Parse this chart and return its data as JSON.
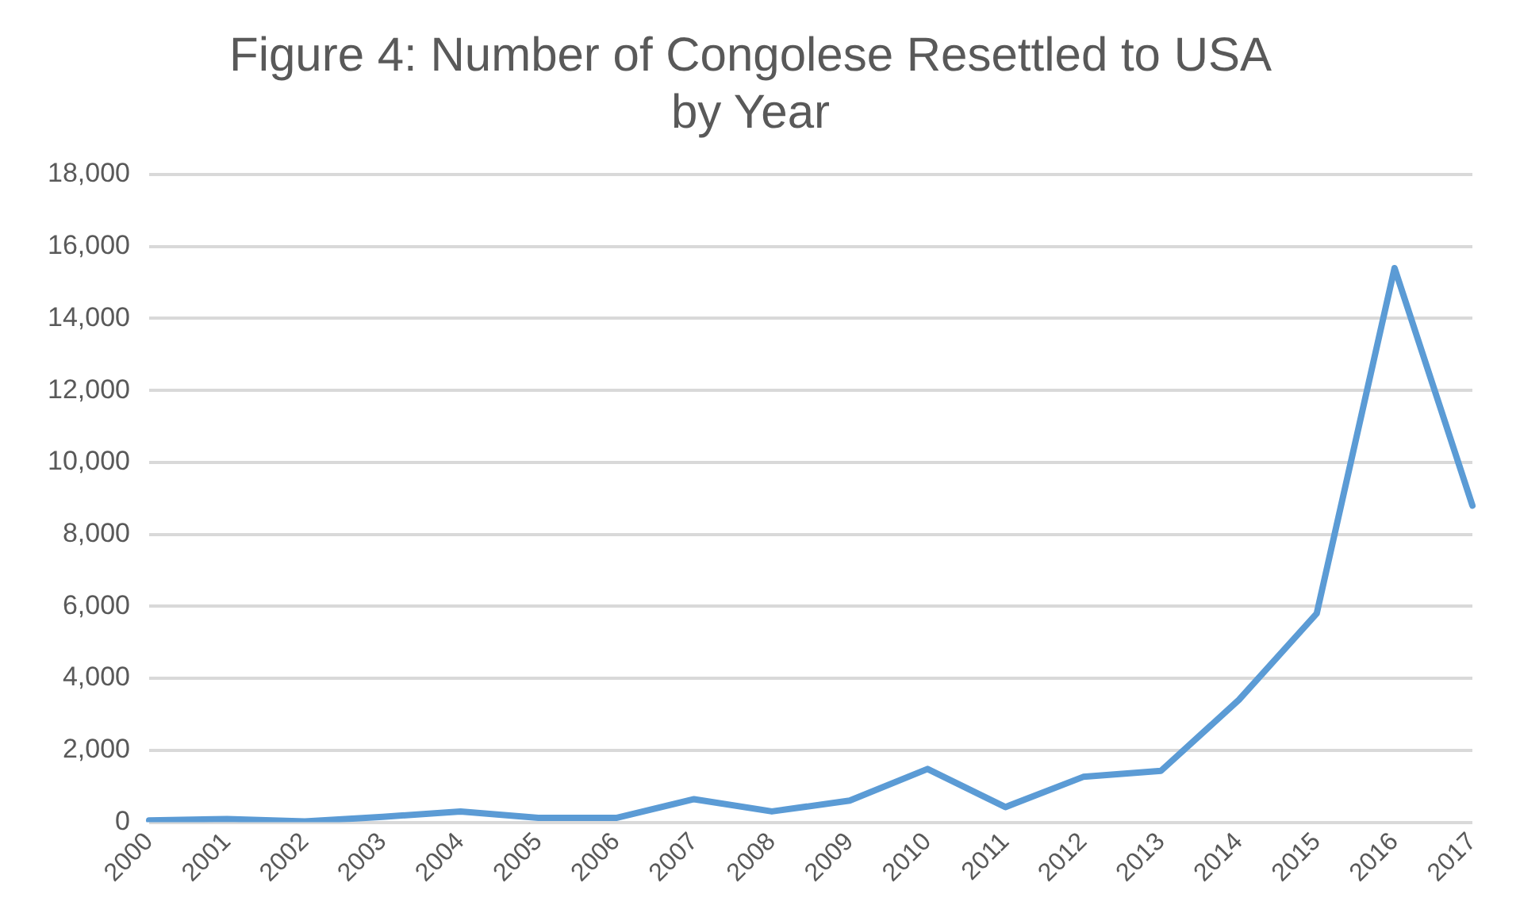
{
  "chart_data": {
    "type": "line",
    "title": [
      "Figure 4: Number of Congolese Resettled to USA",
      "by Year"
    ],
    "categories": [
      "2000",
      "2001",
      "2002",
      "2003",
      "2004",
      "2005",
      "2006",
      "2007",
      "2008",
      "2009",
      "2010",
      "2011",
      "2012",
      "2013",
      "2014",
      "2015",
      "2016",
      "2017"
    ],
    "series": [
      {
        "color": "#5b9bd5",
        "values": [
          50,
          90,
          20,
          150,
          300,
          120,
          120,
          640,
          300,
          600,
          1480,
          420,
          1260,
          1430,
          3400,
          5800,
          15400,
          8800
        ]
      }
    ],
    "ylim": [
      0,
      18000
    ],
    "yticks": [
      {
        "value": 0,
        "label": "0"
      },
      {
        "value": 2000,
        "label": "2,000"
      },
      {
        "value": 4000,
        "label": "4,000"
      },
      {
        "value": 6000,
        "label": "6,000"
      },
      {
        "value": 8000,
        "label": "8,000"
      },
      {
        "value": 10000,
        "label": "10,000"
      },
      {
        "value": 12000,
        "label": "12,000"
      },
      {
        "value": 14000,
        "label": "14,000"
      },
      {
        "value": 16000,
        "label": "16,000"
      },
      {
        "value": 18000,
        "label": "18,000"
      }
    ],
    "grid": "y",
    "legend": false,
    "marker": "none",
    "line_style": "solid"
  }
}
